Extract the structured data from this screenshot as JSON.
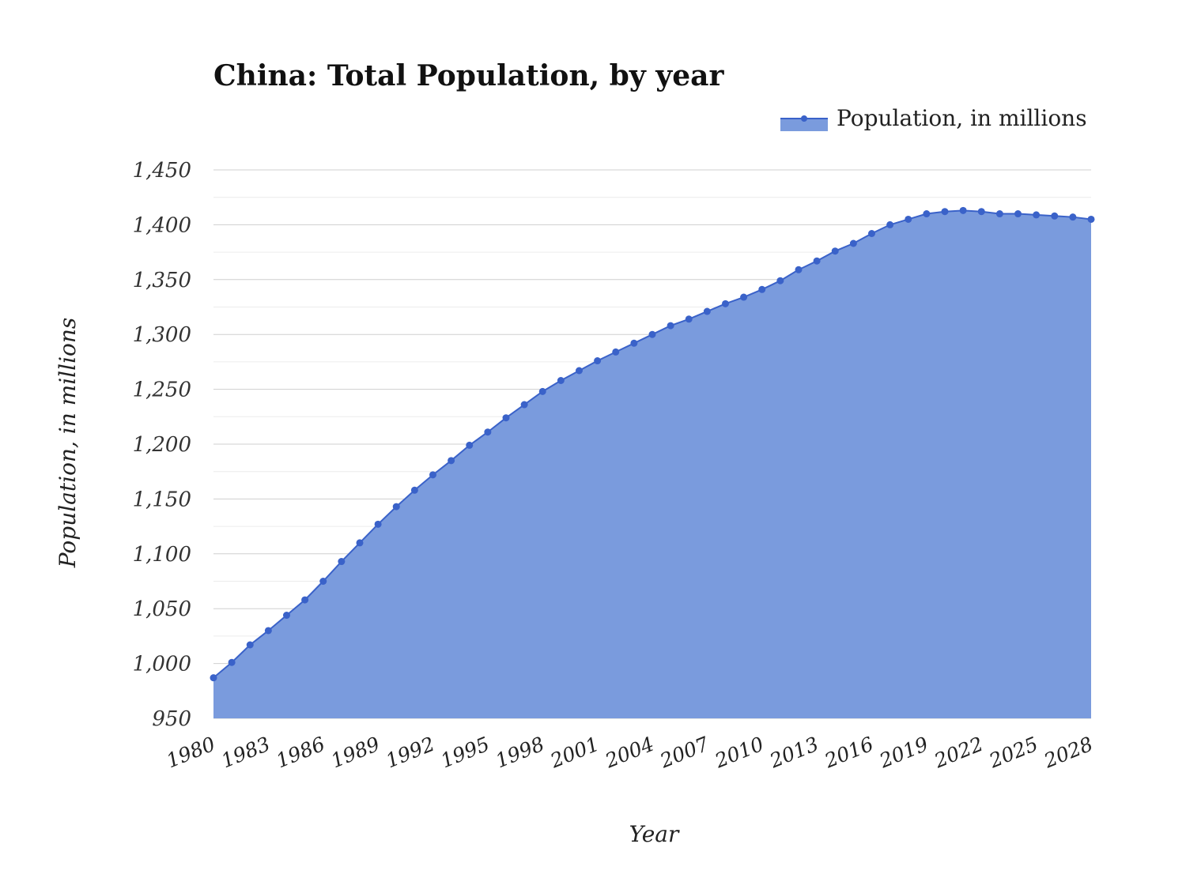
{
  "chart_data": {
    "type": "area",
    "title": "China: Total Population, by year",
    "xlabel": "Year",
    "ylabel": "Population, in millions",
    "ylim": [
      950,
      1450
    ],
    "y_ticks": [
      950,
      1000,
      1050,
      1100,
      1150,
      1200,
      1250,
      1300,
      1350,
      1400,
      1450
    ],
    "y_tick_labels": [
      "950",
      "1,000",
      "1,050",
      "1,100",
      "1,150",
      "1,200",
      "1,250",
      "1,300",
      "1,350",
      "1,400",
      "1,450"
    ],
    "x_tick_labels": [
      "1980",
      "1983",
      "1986",
      "1989",
      "1992",
      "1995",
      "1998",
      "2001",
      "2004",
      "2007",
      "2010",
      "2013",
      "2016",
      "2019",
      "2022",
      "2025",
      "2028"
    ],
    "x_range": [
      1980,
      2028
    ],
    "grid": true,
    "legend_position": "top-right",
    "colors": {
      "line": "#3a62c9",
      "fill": "#7a9bdd",
      "grid": "#d9d9d9"
    },
    "series": [
      {
        "name": "Population, in millions",
        "x": [
          1980,
          1981,
          1982,
          1983,
          1984,
          1985,
          1986,
          1987,
          1988,
          1989,
          1990,
          1991,
          1992,
          1993,
          1994,
          1995,
          1996,
          1997,
          1998,
          1999,
          2000,
          2001,
          2002,
          2003,
          2004,
          2005,
          2006,
          2007,
          2008,
          2009,
          2010,
          2011,
          2012,
          2013,
          2014,
          2015,
          2016,
          2017,
          2018,
          2019,
          2020,
          2021,
          2022,
          2023,
          2024,
          2025,
          2026,
          2027,
          2028
        ],
        "values": [
          987,
          1001,
          1017,
          1030,
          1044,
          1058,
          1075,
          1093,
          1110,
          1127,
          1143,
          1158,
          1172,
          1185,
          1199,
          1211,
          1224,
          1236,
          1248,
          1258,
          1267,
          1276,
          1284,
          1292,
          1300,
          1308,
          1314,
          1321,
          1328,
          1334,
          1341,
          1349,
          1359,
          1367,
          1376,
          1383,
          1392,
          1400,
          1405,
          1410,
          1412,
          1413,
          1412,
          1410,
          1410,
          1409,
          1408,
          1407,
          1405
        ]
      }
    ]
  }
}
